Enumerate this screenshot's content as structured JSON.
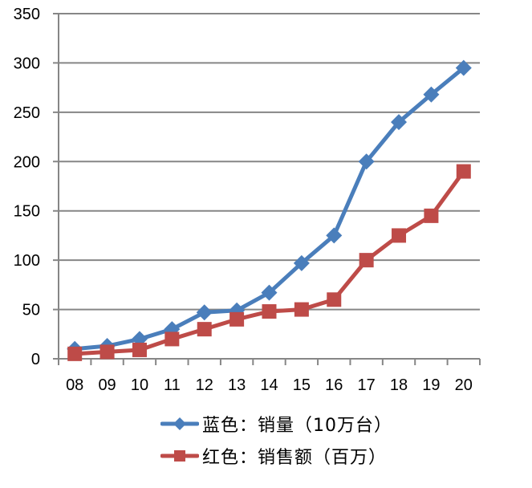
{
  "chart_data": {
    "type": "line",
    "title": "",
    "xlabel": "",
    "ylabel": "",
    "categories": [
      "08",
      "09",
      "10",
      "11",
      "12",
      "13",
      "14",
      "15",
      "16",
      "17",
      "18",
      "19",
      "20"
    ],
    "ylim": [
      0,
      350
    ],
    "yticks": [
      0,
      50,
      100,
      150,
      200,
      250,
      300,
      350
    ],
    "grid": true,
    "legend_position": "bottom",
    "series": [
      {
        "name": "蓝色：销量（10万台）",
        "color": "#4a7ebb",
        "marker": "diamond",
        "values": [
          10,
          13,
          20,
          30,
          47,
          49,
          67,
          97,
          125,
          200,
          240,
          268,
          295
        ]
      },
      {
        "name": "红色：销售额（百万）",
        "color": "#be4b48",
        "marker": "square",
        "values": [
          5,
          7,
          9,
          20,
          30,
          40,
          48,
          50,
          60,
          100,
          125,
          145,
          190
        ]
      }
    ]
  },
  "legend": {
    "items": [
      {
        "label": "蓝色：销量（10万台）",
        "color": "#4a7ebb",
        "marker": "diamond"
      },
      {
        "label": "红色：销售额（百万）",
        "color": "#be4b48",
        "marker": "square"
      }
    ]
  },
  "colors": {
    "grid": "#868686",
    "axis": "#868686"
  }
}
